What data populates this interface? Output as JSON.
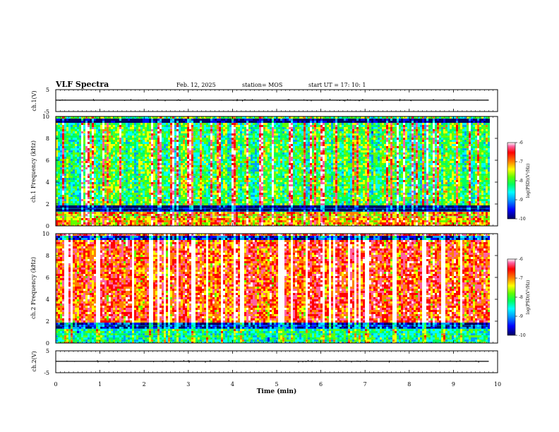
{
  "header": {
    "title": "VLF Spectra",
    "date": "Feb. 12, 2025",
    "station": "station= MOS",
    "start": "start UT = 17: 10: 1"
  },
  "chart_data": [
    {
      "type": "line",
      "panel": "ch1-waveform",
      "ylabel": "ch.1(V)",
      "ylim": [
        -5,
        5
      ],
      "yticks": [
        "5",
        "-5"
      ],
      "x": [
        0,
        1,
        2,
        3,
        4,
        5,
        6,
        7,
        8,
        9,
        9.8
      ],
      "values": [
        0.2,
        0.2,
        0.2,
        0.2,
        0.2,
        0.2,
        0.2,
        0.2,
        0.2,
        0.2,
        0.2
      ]
    },
    {
      "type": "heatmap",
      "panel": "ch1-spectrogram",
      "ylabel": "ch.1 Frequency (kHz)",
      "ylim": [
        0,
        10
      ],
      "yticks": [
        "0",
        "2",
        "4",
        "6",
        "8",
        "10"
      ],
      "xlim": [
        0,
        10
      ],
      "colorbar": {
        "label": "log(PSD)(V²/Hz)",
        "ticks": [
          "-6",
          "-7",
          "-8",
          "-9",
          "-10"
        ],
        "range": [
          -10,
          -6
        ]
      },
      "description_levels": {
        "band_0_1.4_kHz": -7.5,
        "band_1.4_2_kHz": -10,
        "band_2_9.5_kHz": -8.3,
        "band_9.5_10_kHz": -10
      }
    },
    {
      "type": "heatmap",
      "panel": "ch2-spectrogram",
      "ylabel": "ch.2 Frequency (kHz)",
      "ylim": [
        0,
        10
      ],
      "yticks": [
        "0",
        "2",
        "4",
        "6",
        "8",
        "10"
      ],
      "xlim": [
        0,
        10
      ],
      "colorbar": {
        "label": "log(PSD)(V²/Hz)",
        "ticks": [
          "-6",
          "-7",
          "-8",
          "-9",
          "-10"
        ],
        "range": [
          -10,
          -6
        ]
      },
      "description_levels": {
        "band_0_1.4_kHz": -8.5,
        "band_1.4_2_kHz": -9.5,
        "band_2_9.5_kHz": -7,
        "band_9.5_10_kHz": -9.5
      }
    },
    {
      "type": "line",
      "panel": "ch2-waveform",
      "ylabel": "ch.2(V)",
      "ylim": [
        -5,
        5
      ],
      "yticks": [
        "5",
        "-5"
      ],
      "x": [
        0,
        1,
        2,
        3,
        4,
        5,
        6,
        7,
        8,
        9,
        9.8
      ],
      "values": [
        0.2,
        0.2,
        0.2,
        0.2,
        0.2,
        0.2,
        0.2,
        0.2,
        0.2,
        0.2,
        0.2
      ]
    }
  ],
  "xaxis": {
    "label": "Time (min)",
    "ticks": [
      "0",
      "1",
      "2",
      "3",
      "4",
      "5",
      "6",
      "7",
      "8",
      "9",
      "10"
    ],
    "xlim": [
      0,
      10
    ],
    "data_end": 9.8
  },
  "colors": {
    "palette": [
      "#000060",
      "#0000ff",
      "#00a0ff",
      "#00ffff",
      "#00ff60",
      "#60ff00",
      "#ffff00",
      "#ff8000",
      "#ff0000",
      "#ff60a0",
      "#ffffff"
    ]
  }
}
